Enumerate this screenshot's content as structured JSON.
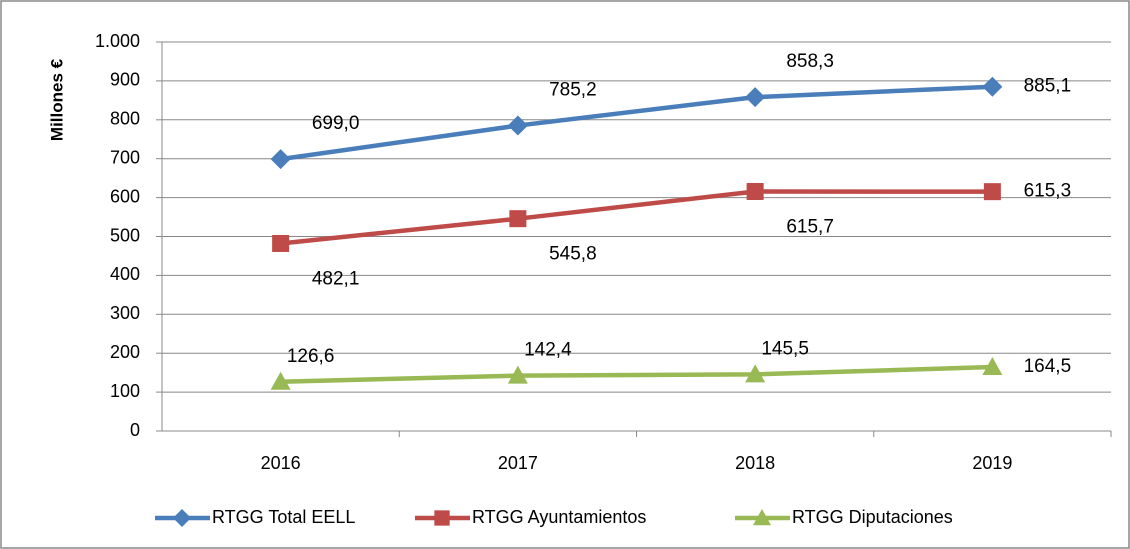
{
  "chart_data": {
    "type": "line",
    "y_label": "Millones €",
    "categories": [
      "2016",
      "2017",
      "2018",
      "2019"
    ],
    "series": [
      {
        "name": "RTGG Total EELL",
        "color": "#4a7ebb",
        "marker": "diamond",
        "values": [
          699.0,
          785.2,
          858.3,
          885.1
        ],
        "value_labels": [
          "699,0",
          "785,2",
          "858,3",
          "885,1"
        ]
      },
      {
        "name": "RTGG Ayuntamientos",
        "color": "#be4b48",
        "marker": "square",
        "values": [
          482.1,
          545.8,
          615.7,
          615.3
        ],
        "value_labels": [
          "482,1",
          "545,8",
          "615,7",
          "615,3"
        ]
      },
      {
        "name": "RTGG Diputaciones",
        "color": "#98b954",
        "marker": "triangle",
        "values": [
          126.6,
          142.4,
          145.5,
          164.5
        ],
        "value_labels": [
          "126,6",
          "142,4",
          "145,5",
          "164,5"
        ]
      }
    ],
    "ylim": [
      0,
      1000
    ],
    "yticks": [
      0,
      100,
      200,
      300,
      400,
      500,
      600,
      700,
      800,
      900,
      {
        "value": 1000,
        "label": "1.000"
      }
    ],
    "grid": true,
    "legend": "bottom"
  }
}
